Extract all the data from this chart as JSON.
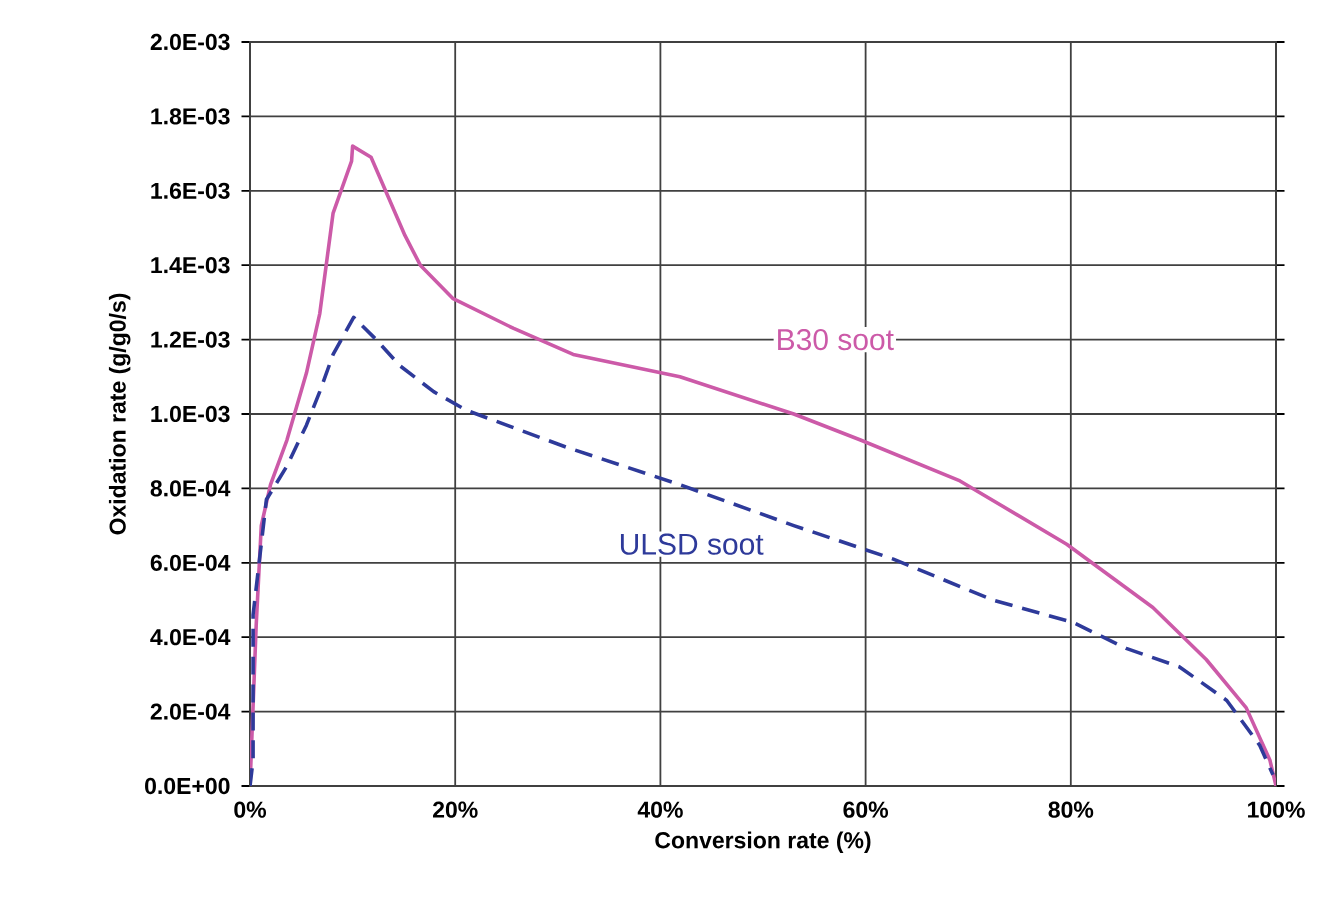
{
  "chart_data": {
    "type": "line",
    "xlabel": "Conversion rate (%)",
    "ylabel": "Oxidation rate (g/g0/s)",
    "xlim": [
      0,
      100
    ],
    "ylim": [
      0,
      0.002
    ],
    "xticks": [
      {
        "value": 0,
        "label": "0%"
      },
      {
        "value": 20,
        "label": "20%"
      },
      {
        "value": 40,
        "label": "40%"
      },
      {
        "value": 60,
        "label": "60%"
      },
      {
        "value": 80,
        "label": "80%"
      },
      {
        "value": 100,
        "label": "100%"
      }
    ],
    "yticks": [
      {
        "value": 0,
        "label": "0.0E+00"
      },
      {
        "value": 0.0002,
        "label": "2.0E-04"
      },
      {
        "value": 0.0004,
        "label": "4.0E-04"
      },
      {
        "value": 0.0006,
        "label": "6.0E-04"
      },
      {
        "value": 0.0008,
        "label": "8.0E-04"
      },
      {
        "value": 0.001,
        "label": "1.0E-03"
      },
      {
        "value": 0.0012,
        "label": "1.2E-03"
      },
      {
        "value": 0.0014,
        "label": "1.4E-03"
      },
      {
        "value": 0.0016,
        "label": "1.6E-03"
      },
      {
        "value": 0.0018,
        "label": "1.8E-03"
      },
      {
        "value": 0.002,
        "label": "2.0E-03"
      }
    ],
    "grid": true,
    "legend": false,
    "marker": "none",
    "series": [
      {
        "name": "B30 soot",
        "color": "#cc5aa8",
        "line_style": "solid",
        "x": [
          0,
          0.6,
          1.1,
          2.0,
          3.6,
          5.5,
          6.8,
          8.1,
          9.9,
          10.0,
          11.8,
          15.1,
          16.6,
          19.8,
          25.7,
          31.5,
          41.9,
          53,
          59.5,
          69.2,
          79.6,
          88.0,
          93.2,
          97.1,
          99.4,
          100
        ],
        "values": [
          0,
          0.00043,
          0.0007,
          0.00081,
          0.00093,
          0.00111,
          0.00127,
          0.00154,
          0.00168,
          0.00172,
          0.00169,
          0.00148,
          0.0014,
          0.00131,
          0.00123,
          0.00116,
          0.0011,
          0.001,
          0.00093,
          0.00082,
          0.00065,
          0.00048,
          0.00034,
          0.00021,
          7e-05,
          0
        ]
      },
      {
        "name": "ULSD soot",
        "color": "#2e3a9a",
        "line_style": "dashed",
        "x": [
          0,
          0.3,
          0.3,
          1.6,
          3.6,
          5.5,
          6.8,
          8.1,
          10.1,
          12.3,
          14.6,
          17.9,
          21.1,
          30.9,
          41.9,
          53,
          62.7,
          72.4,
          80.2,
          85.4,
          90.6,
          95.2,
          98.4,
          99.7
        ],
        "values": [
          0,
          7e-05,
          0.00046,
          0.00077,
          0.00086,
          0.00097,
          0.00106,
          0.00116,
          0.00126,
          0.0012,
          0.00113,
          0.00106,
          0.00101,
          0.00091,
          0.00081,
          0.0007,
          0.00061,
          0.0005,
          0.00044,
          0.00037,
          0.00032,
          0.00023,
          0.00011,
          3e-05
        ]
      }
    ]
  }
}
